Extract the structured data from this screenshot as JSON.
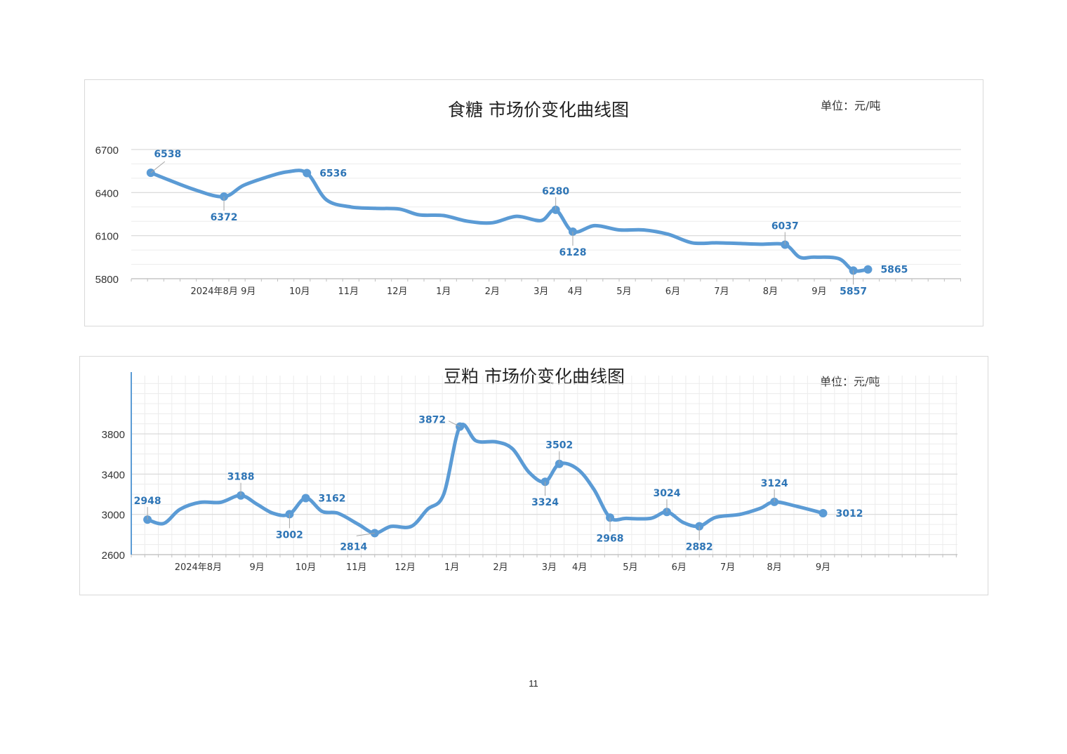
{
  "page_number": "11",
  "colors": {
    "line": "#5b9bd5",
    "label": "#2e75b6",
    "grid": "#d9d9d9",
    "minor_grid": "#ececec"
  },
  "chart_data": [
    {
      "type": "line",
      "title": "食糖 市场价变化曲线图",
      "unit": "单位：元/吨",
      "ylim": [
        5800,
        6700
      ],
      "yticks": [
        "5800",
        "6100",
        "6400",
        "6700"
      ],
      "xlabels": [
        "2024年8月",
        "9月",
        "10月",
        "11月",
        "12月",
        "1月",
        "2月",
        "3月",
        "4月",
        "5月",
        "6月",
        "7月",
        "8月",
        "9月"
      ],
      "minor_grid": false,
      "x_period": 1.0,
      "x_first": 0.4,
      "x_count": 16.5,
      "series_points": [
        [
          0.4,
          6538
        ],
        [
          1.3,
          6420
        ],
        [
          1.9,
          6372
        ],
        [
          2.3,
          6450
        ],
        [
          2.8,
          6510
        ],
        [
          3.2,
          6545
        ],
        [
          3.6,
          6536
        ],
        [
          4.0,
          6350
        ],
        [
          4.5,
          6300
        ],
        [
          5.0,
          6290
        ],
        [
          5.5,
          6285
        ],
        [
          5.9,
          6245
        ],
        [
          6.4,
          6240
        ],
        [
          6.9,
          6200
        ],
        [
          7.4,
          6190
        ],
        [
          7.9,
          6235
        ],
        [
          8.4,
          6205
        ],
        [
          8.7,
          6280
        ],
        [
          9.05,
          6128
        ],
        [
          9.5,
          6170
        ],
        [
          10.0,
          6140
        ],
        [
          10.5,
          6140
        ],
        [
          11.0,
          6110
        ],
        [
          11.5,
          6050
        ],
        [
          12.0,
          6050
        ],
        [
          12.5,
          6045
        ],
        [
          12.9,
          6040
        ],
        [
          13.4,
          6037
        ],
        [
          13.7,
          5950
        ],
        [
          14.0,
          5950
        ],
        [
          14.5,
          5940
        ],
        [
          14.8,
          5857
        ],
        [
          15.1,
          5865
        ]
      ],
      "labeled_points": [
        {
          "x": 0.4,
          "y": 6538,
          "label": "6538",
          "pos": "above-right"
        },
        {
          "x": 1.9,
          "y": 6372,
          "label": "6372",
          "pos": "below"
        },
        {
          "x": 3.6,
          "y": 6536,
          "label": "6536",
          "pos": "right"
        },
        {
          "x": 8.7,
          "y": 6280,
          "label": "6280",
          "pos": "above"
        },
        {
          "x": 9.05,
          "y": 6128,
          "label": "6128",
          "pos": "below"
        },
        {
          "x": 13.4,
          "y": 6037,
          "label": "6037",
          "pos": "above"
        },
        {
          "x": 14.8,
          "y": 5857,
          "label": "5857",
          "pos": "below"
        },
        {
          "x": 15.1,
          "y": 5865,
          "label": "5865",
          "pos": "right"
        }
      ]
    },
    {
      "type": "line",
      "title": "豆粕 市场价变化曲线图",
      "unit": "单位：元/吨",
      "ylim": [
        2600,
        4100
      ],
      "yticks": [
        "2600",
        "3000",
        "3400",
        "3800"
      ],
      "xlabels": [
        "2024年8月",
        "9月",
        "10月",
        "11月",
        "12月",
        "1月",
        "2月",
        "3月",
        "4月",
        "5月",
        "6月",
        "7月",
        "8月",
        "9月"
      ],
      "minor_grid": true,
      "x_period": 1.0,
      "x_first": 0.4,
      "x_count": 16.5,
      "series_points": [
        [
          0.4,
          2948
        ],
        [
          0.8,
          2910
        ],
        [
          1.2,
          3050
        ],
        [
          1.7,
          3120
        ],
        [
          2.2,
          3120
        ],
        [
          2.7,
          3188
        ],
        [
          3.1,
          3100
        ],
        [
          3.5,
          3010
        ],
        [
          3.9,
          3002
        ],
        [
          4.3,
          3162
        ],
        [
          4.7,
          3030
        ],
        [
          5.1,
          3010
        ],
        [
          5.6,
          2900
        ],
        [
          6.0,
          2814
        ],
        [
          6.4,
          2880
        ],
        [
          6.9,
          2880
        ],
        [
          7.3,
          3050
        ],
        [
          7.7,
          3200
        ],
        [
          8.1,
          3872
        ],
        [
          8.5,
          3730
        ],
        [
          9.0,
          3720
        ],
        [
          9.4,
          3650
        ],
        [
          9.8,
          3420
        ],
        [
          10.2,
          3324
        ],
        [
          10.55,
          3502
        ],
        [
          11.0,
          3450
        ],
        [
          11.4,
          3250
        ],
        [
          11.8,
          2968
        ],
        [
          12.2,
          2960
        ],
        [
          12.8,
          2960
        ],
        [
          13.2,
          3024
        ],
        [
          13.6,
          2920
        ],
        [
          14.0,
          2882
        ],
        [
          14.4,
          2970
        ],
        [
          15.0,
          3000
        ],
        [
          15.5,
          3060
        ],
        [
          15.85,
          3124
        ],
        [
          16.4,
          3080
        ],
        [
          17.05,
          3012
        ]
      ],
      "labeled_points": [
        {
          "x": 0.4,
          "y": 2948,
          "label": "2948",
          "pos": "above"
        },
        {
          "x": 2.7,
          "y": 3188,
          "label": "3188",
          "pos": "above"
        },
        {
          "x": 3.9,
          "y": 3002,
          "label": "3002",
          "pos": "below"
        },
        {
          "x": 4.3,
          "y": 3162,
          "label": "3162",
          "pos": "right"
        },
        {
          "x": 6.0,
          "y": 2814,
          "label": "2814",
          "pos": "below-left"
        },
        {
          "x": 8.1,
          "y": 3872,
          "label": "3872",
          "pos": "left"
        },
        {
          "x": 10.2,
          "y": 3324,
          "label": "3324",
          "pos": "below"
        },
        {
          "x": 10.55,
          "y": 3502,
          "label": "3502",
          "pos": "above"
        },
        {
          "x": 11.8,
          "y": 2968,
          "label": "2968",
          "pos": "below"
        },
        {
          "x": 13.2,
          "y": 3024,
          "label": "3024",
          "pos": "above"
        },
        {
          "x": 14.0,
          "y": 2882,
          "label": "2882",
          "pos": "below"
        },
        {
          "x": 15.85,
          "y": 3124,
          "label": "3124",
          "pos": "above"
        },
        {
          "x": 17.05,
          "y": 3012,
          "label": "3012",
          "pos": "right"
        }
      ]
    }
  ]
}
